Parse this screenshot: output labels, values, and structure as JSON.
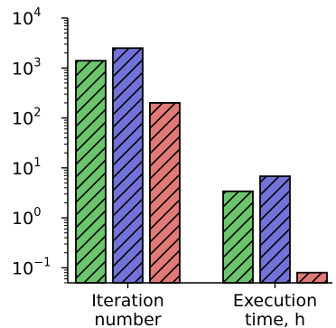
{
  "chart_data": {
    "type": "bar",
    "title": "",
    "xlabel": "",
    "ylabel": "",
    "yscale": "log",
    "ylim": [
      0.05,
      10000
    ],
    "y_ticks": [
      {
        "base": "10",
        "exp": "4",
        "value": 10000
      },
      {
        "base": "10",
        "exp": "3",
        "value": 1000
      },
      {
        "base": "10",
        "exp": "2",
        "value": 100
      },
      {
        "base": "10",
        "exp": "1",
        "value": 10
      },
      {
        "base": "10",
        "exp": "0",
        "value": 1
      },
      {
        "base": "10",
        "exp": "−1",
        "value": 0.1
      }
    ],
    "categories": [
      {
        "line1": "Iteration",
        "line2": "number"
      },
      {
        "line1": "Execution",
        "line2": "time, h"
      }
    ],
    "series": [
      {
        "color": "#6cc46c",
        "values": [
          1400,
          3.4
        ]
      },
      {
        "color": "#7272d9",
        "values": [
          2500,
          6.8
        ]
      },
      {
        "color": "#e07a77",
        "values": [
          200,
          0.08
        ]
      }
    ],
    "hatch": "diagonal",
    "legend": "none",
    "grid": false
  }
}
